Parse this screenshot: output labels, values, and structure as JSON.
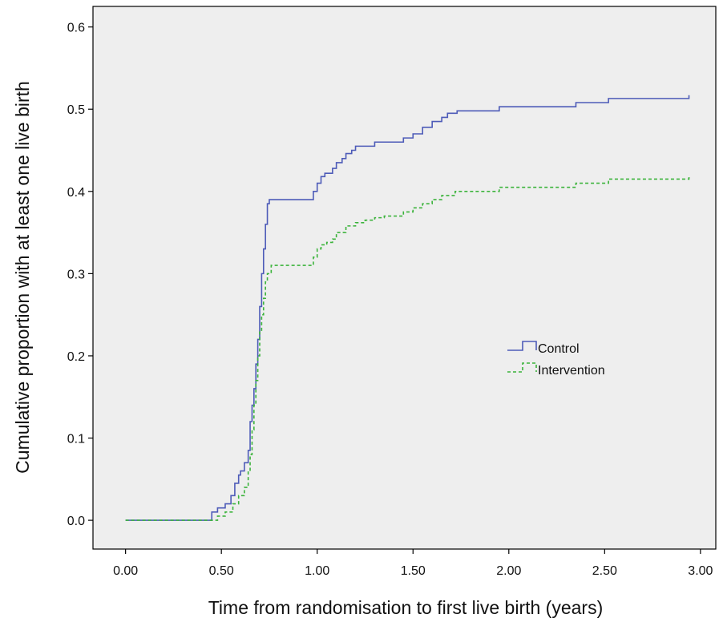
{
  "chart_data": {
    "type": "line",
    "title": "",
    "xlabel": "Time from randomisation to first live birth (years)",
    "ylabel": "Cumulative proportion with at least one live birth",
    "xlim": [
      -0.17,
      3.08
    ],
    "ylim": [
      -0.035,
      0.625
    ],
    "x_ticks": [
      "0.00",
      "0.50",
      "1.00",
      "1.50",
      "2.00",
      "2.50",
      "3.00"
    ],
    "y_ticks": [
      "0.0",
      "0.1",
      "0.2",
      "0.3",
      "0.4",
      "0.5",
      "0.6"
    ],
    "grid": false,
    "legend_position": "middle-right",
    "plot_background": "#eeeeee",
    "series": [
      {
        "name": "Control",
        "color": "#4d5bb8",
        "line_style": "solid",
        "x": [
          0.0,
          0.43,
          0.45,
          0.48,
          0.52,
          0.55,
          0.57,
          0.59,
          0.6,
          0.62,
          0.64,
          0.65,
          0.66,
          0.67,
          0.68,
          0.69,
          0.7,
          0.71,
          0.72,
          0.73,
          0.74,
          0.75,
          0.96,
          0.98,
          1.0,
          1.02,
          1.04,
          1.08,
          1.1,
          1.13,
          1.15,
          1.18,
          1.2,
          1.23,
          1.3,
          1.35,
          1.45,
          1.5,
          1.55,
          1.6,
          1.65,
          1.68,
          1.73,
          1.95,
          2.35,
          2.52,
          2.94
        ],
        "y": [
          0.0,
          0.0,
          0.01,
          0.015,
          0.02,
          0.03,
          0.045,
          0.055,
          0.06,
          0.07,
          0.085,
          0.12,
          0.14,
          0.16,
          0.19,
          0.22,
          0.26,
          0.3,
          0.33,
          0.36,
          0.385,
          0.39,
          0.39,
          0.4,
          0.41,
          0.418,
          0.422,
          0.428,
          0.435,
          0.44,
          0.446,
          0.45,
          0.455,
          0.455,
          0.46,
          0.46,
          0.465,
          0.47,
          0.478,
          0.485,
          0.49,
          0.495,
          0.498,
          0.503,
          0.508,
          0.513,
          0.517
        ]
      },
      {
        "name": "Intervention",
        "color": "#3bb33b",
        "line_style": "dashed",
        "x": [
          0.0,
          0.45,
          0.48,
          0.52,
          0.56,
          0.59,
          0.62,
          0.64,
          0.65,
          0.66,
          0.67,
          0.68,
          0.69,
          0.7,
          0.71,
          0.72,
          0.73,
          0.74,
          0.76,
          0.96,
          0.98,
          1.0,
          1.02,
          1.05,
          1.08,
          1.1,
          1.15,
          1.2,
          1.25,
          1.3,
          1.35,
          1.45,
          1.5,
          1.55,
          1.6,
          1.65,
          1.72,
          1.95,
          2.35,
          2.52,
          2.94
        ],
        "y": [
          0.0,
          0.0,
          0.005,
          0.01,
          0.02,
          0.03,
          0.04,
          0.06,
          0.08,
          0.11,
          0.14,
          0.17,
          0.2,
          0.23,
          0.25,
          0.27,
          0.29,
          0.3,
          0.31,
          0.31,
          0.32,
          0.33,
          0.335,
          0.338,
          0.342,
          0.35,
          0.358,
          0.362,
          0.365,
          0.368,
          0.37,
          0.375,
          0.38,
          0.385,
          0.39,
          0.395,
          0.4,
          0.405,
          0.41,
          0.415,
          0.418
        ]
      }
    ]
  }
}
